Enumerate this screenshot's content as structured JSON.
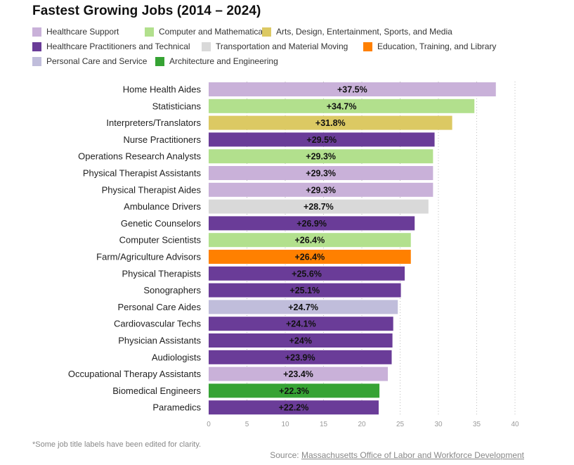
{
  "chart_data": {
    "type": "bar",
    "orientation": "horizontal",
    "title": "Fastest Growing Jobs (2014 – 2024)",
    "xlabel": "",
    "ylabel": "",
    "xlim": [
      0,
      40
    ],
    "xticks": [
      0,
      5,
      10,
      15,
      20,
      25,
      30,
      35,
      40
    ],
    "grid": "vertical dotted",
    "legend_position": "top",
    "categories_legend": [
      {
        "name": "Healthcare Support",
        "color": "#c9b1d9"
      },
      {
        "name": "Computer and Mathematical",
        "color": "#b2e08d"
      },
      {
        "name": "Arts, Design, Entertainment, Sports, and Media",
        "color": "#dcc963"
      },
      {
        "name": "Healthcare Practitioners and Technical",
        "color": "#6a3c98"
      },
      {
        "name": "Transportation and Material Moving",
        "color": "#d9d9d9"
      },
      {
        "name": "Education, Training, and Library",
        "color": "#ff8000"
      },
      {
        "name": "Personal Care and Service",
        "color": "#c0bddb"
      },
      {
        "name": "Architecture and Engineering",
        "color": "#36a334"
      }
    ],
    "bars": [
      {
        "label": "Home Health Aides",
        "value": 37.5,
        "display": "+37.5%",
        "category": "Healthcare Support"
      },
      {
        "label": "Statisticians",
        "value": 34.7,
        "display": "+34.7%",
        "category": "Computer and Mathematical"
      },
      {
        "label": "Interpreters/Translators",
        "value": 31.8,
        "display": "+31.8%",
        "category": "Arts, Design, Entertainment, Sports, and Media"
      },
      {
        "label": "Nurse Practitioners",
        "value": 29.5,
        "display": "+29.5%",
        "category": "Healthcare Practitioners and Technical"
      },
      {
        "label": "Operations Research Analysts",
        "value": 29.3,
        "display": "+29.3%",
        "category": "Computer and Mathematical"
      },
      {
        "label": "Physical Therapist Assistants",
        "value": 29.3,
        "display": "+29.3%",
        "category": "Healthcare Support"
      },
      {
        "label": "Physical Therapist Aides",
        "value": 29.3,
        "display": "+29.3%",
        "category": "Healthcare Support"
      },
      {
        "label": "Ambulance Drivers",
        "value": 28.7,
        "display": "+28.7%",
        "category": "Transportation and Material Moving"
      },
      {
        "label": "Genetic Counselors",
        "value": 26.9,
        "display": "+26.9%",
        "category": "Healthcare Practitioners and Technical"
      },
      {
        "label": "Computer Scientists",
        "value": 26.4,
        "display": "+26.4%",
        "category": "Computer and Mathematical"
      },
      {
        "label": "Farm/Agriculture Advisors",
        "value": 26.4,
        "display": "+26.4%",
        "category": "Education, Training, and Library"
      },
      {
        "label": "Physical Therapists",
        "value": 25.6,
        "display": "+25.6%",
        "category": "Healthcare Practitioners and Technical"
      },
      {
        "label": "Sonographers",
        "value": 25.1,
        "display": "+25.1%",
        "category": "Healthcare Practitioners and Technical"
      },
      {
        "label": "Personal Care Aides",
        "value": 24.7,
        "display": "+24.7%",
        "category": "Personal Care and Service"
      },
      {
        "label": "Cardiovascular Techs",
        "value": 24.1,
        "display": "+24.1%",
        "category": "Healthcare Practitioners and Technical"
      },
      {
        "label": "Physician Assistants",
        "value": 24.0,
        "display": "+24%",
        "category": "Healthcare Practitioners and Technical"
      },
      {
        "label": "Audiologists",
        "value": 23.9,
        "display": "+23.9%",
        "category": "Healthcare Practitioners and Technical"
      },
      {
        "label": "Occupational Therapy Assistants",
        "value": 23.4,
        "display": "+23.4%",
        "category": "Healthcare Support"
      },
      {
        "label": "Biomedical Engineers",
        "value": 22.3,
        "display": "+22.3%",
        "category": "Architecture and Engineering"
      },
      {
        "label": "Paramedics",
        "value": 22.2,
        "display": "+22.2%",
        "category": "Healthcare Practitioners and Technical"
      }
    ]
  },
  "footnote": "*Some job title labels have been edited for clarity.",
  "source": {
    "prefix": "Source: ",
    "link_text": "Massachusetts Office of Labor and Workforce Development"
  }
}
